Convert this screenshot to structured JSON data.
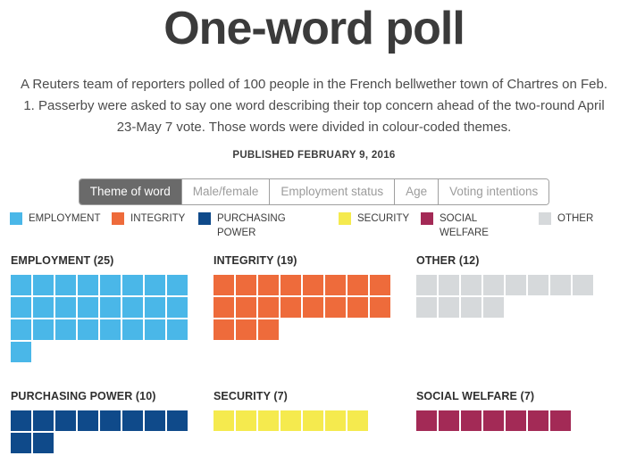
{
  "page": {
    "title": "One-word poll",
    "subtitle": "A Reuters team of reporters polled of 100 people in the French bellwether town of Chartres on Feb. 1. Passerby were asked to say one word describing their top concern ahead of the two-round April 23-May 7 vote. Those words were divided in colour-coded themes.",
    "published": "PUBLISHED FEBRUARY 9, 2016"
  },
  "tabs": [
    {
      "label": "Theme of word",
      "active": true
    },
    {
      "label": "Male/female",
      "active": false
    },
    {
      "label": "Employment status",
      "active": false
    },
    {
      "label": "Age",
      "active": false
    },
    {
      "label": "Voting intentions",
      "active": false
    }
  ],
  "legend": [
    {
      "label": "EMPLOYMENT",
      "color": "#4ab7e8"
    },
    {
      "label": "INTEGRITY",
      "color": "#ee6b3b"
    },
    {
      "label": "PURCHASING POWER",
      "color": "#0f4a8a"
    },
    {
      "label": "SECURITY",
      "color": "#f5ea4e"
    },
    {
      "label": "SOCIAL WELFARE",
      "color": "#a32a56"
    },
    {
      "label": "OTHER",
      "color": "#d6d9db"
    }
  ],
  "chart_data": {
    "type": "waffle",
    "title": "One-word poll",
    "squares_per_row": 8,
    "legend_position": "top",
    "groups": [
      {
        "label": "EMPLOYMENT",
        "count": 25,
        "color": "#4ab7e8"
      },
      {
        "label": "INTEGRITY",
        "count": 19,
        "color": "#ee6b3b"
      },
      {
        "label": "OTHER",
        "count": 12,
        "color": "#d6d9db"
      },
      {
        "label": "PURCHASING POWER",
        "count": 10,
        "color": "#0f4a8a"
      },
      {
        "label": "SECURITY",
        "count": 7,
        "color": "#f5ea4e"
      },
      {
        "label": "SOCIAL WELFARE",
        "count": 7,
        "color": "#a32a56"
      }
    ]
  }
}
